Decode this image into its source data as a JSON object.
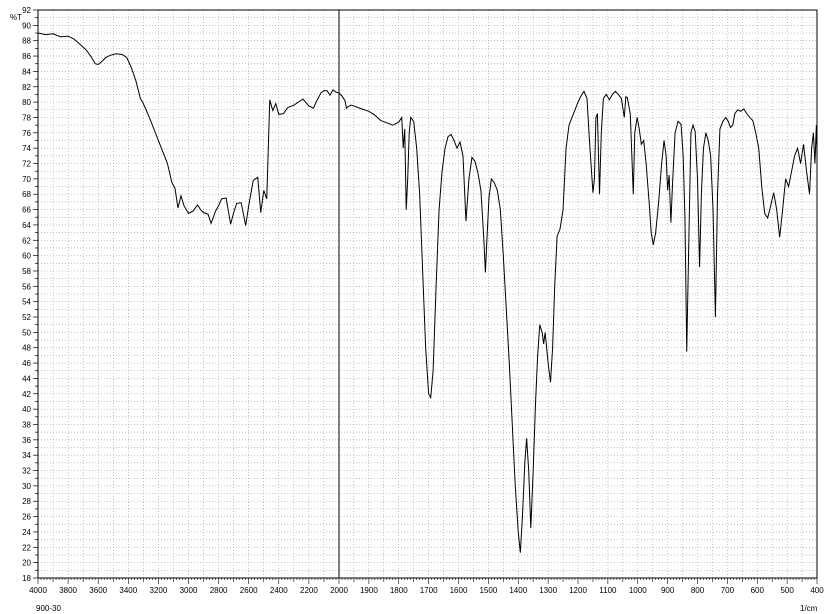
{
  "chart_data": {
    "type": "line",
    "y_unit_label": "%T",
    "x_unit_label": "1/cm",
    "sample_id": "900-30",
    "x_axis": {
      "reversed": true,
      "range": [
        4000,
        400
      ],
      "major_ticks": [
        4000,
        3800,
        3600,
        3400,
        3200,
        3000,
        2800,
        2600,
        2400,
        2200,
        2000,
        1900,
        1800,
        1700,
        1600,
        1500,
        1400,
        1300,
        1200,
        1100,
        1000,
        900,
        800,
        700,
        600,
        500,
        400
      ]
    },
    "y_axis": {
      "range": [
        18,
        92
      ],
      "major_ticks": [
        18,
        20,
        22,
        24,
        26,
        28,
        30,
        32,
        34,
        36,
        38,
        40,
        42,
        44,
        46,
        48,
        50,
        52,
        54,
        56,
        58,
        60,
        62,
        64,
        66,
        68,
        70,
        72,
        74,
        76,
        78,
        80,
        82,
        84,
        86,
        88,
        90,
        92
      ]
    },
    "grid": true,
    "scale_break_marker_at": 2000,
    "series": [
      {
        "points": [
          [
            4000,
            89
          ],
          [
            3950,
            88.8
          ],
          [
            3900,
            88.9
          ],
          [
            3850,
            88.5
          ],
          [
            3800,
            88.6
          ],
          [
            3760,
            88.2
          ],
          [
            3720,
            87.5
          ],
          [
            3680,
            86.8
          ],
          [
            3650,
            86
          ],
          [
            3620,
            85
          ],
          [
            3600,
            84.9
          ],
          [
            3575,
            85.3
          ],
          [
            3550,
            85.8
          ],
          [
            3520,
            86.1
          ],
          [
            3480,
            86.3
          ],
          [
            3440,
            86.2
          ],
          [
            3410,
            85.8
          ],
          [
            3380,
            84.5
          ],
          [
            3350,
            82.8
          ],
          [
            3320,
            80.5
          ],
          [
            3300,
            79.8
          ],
          [
            3260,
            78
          ],
          [
            3220,
            76
          ],
          [
            3180,
            74
          ],
          [
            3140,
            72
          ],
          [
            3110,
            69.5
          ],
          [
            3090,
            68.8
          ],
          [
            3070,
            66.2
          ],
          [
            3050,
            67.8
          ],
          [
            3030,
            66.5
          ],
          [
            3000,
            65.5
          ],
          [
            2970,
            65.8
          ],
          [
            2940,
            66.6
          ],
          [
            2920,
            66
          ],
          [
            2900,
            65.6
          ],
          [
            2870,
            65.4
          ],
          [
            2850,
            64.2
          ],
          [
            2820,
            65.8
          ],
          [
            2800,
            66.5
          ],
          [
            2780,
            67.4
          ],
          [
            2750,
            67.5
          ],
          [
            2720,
            64.1
          ],
          [
            2700,
            65.6
          ],
          [
            2680,
            66.8
          ],
          [
            2650,
            66.9
          ],
          [
            2620,
            63.9
          ],
          [
            2600,
            66.5
          ],
          [
            2570,
            69.8
          ],
          [
            2540,
            70.2
          ],
          [
            2520,
            65.6
          ],
          [
            2500,
            68.5
          ],
          [
            2480,
            67.4
          ],
          [
            2460,
            80.3
          ],
          [
            2440,
            78.9
          ],
          [
            2420,
            79.8
          ],
          [
            2400,
            78.4
          ],
          [
            2370,
            78.5
          ],
          [
            2340,
            79.3
          ],
          [
            2300,
            79.6
          ],
          [
            2270,
            80
          ],
          [
            2240,
            80.4
          ],
          [
            2200,
            79.5
          ],
          [
            2170,
            79.2
          ],
          [
            2150,
            80.1
          ],
          [
            2120,
            81.2
          ],
          [
            2100,
            81.5
          ],
          [
            2080,
            81.5
          ],
          [
            2060,
            80.9
          ],
          [
            2040,
            81.6
          ],
          [
            2020,
            81.3
          ],
          [
            2000,
            81.2
          ],
          [
            1990,
            80.8
          ],
          [
            1980,
            80.2
          ],
          [
            1975,
            79.2
          ],
          [
            1970,
            79.4
          ],
          [
            1960,
            79.6
          ],
          [
            1950,
            79.5
          ],
          [
            1930,
            79.2
          ],
          [
            1900,
            78.8
          ],
          [
            1880,
            78.3
          ],
          [
            1860,
            77.6
          ],
          [
            1840,
            77.3
          ],
          [
            1820,
            77
          ],
          [
            1800,
            77.4
          ],
          [
            1790,
            78
          ],
          [
            1785,
            74
          ],
          [
            1780,
            76.5
          ],
          [
            1775,
            66
          ],
          [
            1770,
            70
          ],
          [
            1765,
            76
          ],
          [
            1760,
            78
          ],
          [
            1750,
            77.5
          ],
          [
            1740,
            74
          ],
          [
            1730,
            68
          ],
          [
            1720,
            58
          ],
          [
            1710,
            48
          ],
          [
            1700,
            42
          ],
          [
            1693,
            41.5
          ],
          [
            1685,
            45
          ],
          [
            1675,
            56
          ],
          [
            1665,
            66
          ],
          [
            1655,
            71
          ],
          [
            1645,
            74
          ],
          [
            1635,
            75.5
          ],
          [
            1625,
            75.8
          ],
          [
            1615,
            75
          ],
          [
            1605,
            74
          ],
          [
            1595,
            74.8
          ],
          [
            1585,
            73
          ],
          [
            1575,
            64.5
          ],
          [
            1565,
            70
          ],
          [
            1555,
            72.8
          ],
          [
            1545,
            72.3
          ],
          [
            1535,
            70.8
          ],
          [
            1525,
            68.5
          ],
          [
            1515,
            62
          ],
          [
            1510,
            57.8
          ],
          [
            1505,
            62
          ],
          [
            1498,
            67.5
          ],
          [
            1490,
            70
          ],
          [
            1480,
            69.5
          ],
          [
            1470,
            68.5
          ],
          [
            1460,
            66
          ],
          [
            1450,
            60
          ],
          [
            1440,
            53
          ],
          [
            1430,
            46
          ],
          [
            1420,
            38
          ],
          [
            1410,
            30
          ],
          [
            1400,
            24
          ],
          [
            1393,
            21.3
          ],
          [
            1386,
            26
          ],
          [
            1378,
            33
          ],
          [
            1372,
            36.2
          ],
          [
            1365,
            32
          ],
          [
            1358,
            24.5
          ],
          [
            1350,
            32
          ],
          [
            1342,
            41
          ],
          [
            1335,
            47
          ],
          [
            1328,
            51
          ],
          [
            1320,
            50
          ],
          [
            1315,
            48.5
          ],
          [
            1310,
            50
          ],
          [
            1300,
            46
          ],
          [
            1292,
            43.5
          ],
          [
            1285,
            48
          ],
          [
            1278,
            56
          ],
          [
            1270,
            62.5
          ],
          [
            1260,
            63.5
          ],
          [
            1250,
            66
          ],
          [
            1240,
            74
          ],
          [
            1230,
            77
          ],
          [
            1220,
            78
          ],
          [
            1210,
            79
          ],
          [
            1200,
            80
          ],
          [
            1190,
            80.8
          ],
          [
            1180,
            81.4
          ],
          [
            1170,
            80.5
          ],
          [
            1160,
            74
          ],
          [
            1150,
            68.2
          ],
          [
            1145,
            70
          ],
          [
            1140,
            78
          ],
          [
            1135,
            78.5
          ],
          [
            1128,
            68
          ],
          [
            1122,
            76
          ],
          [
            1115,
            80.5
          ],
          [
            1105,
            81
          ],
          [
            1095,
            80.3
          ],
          [
            1085,
            81
          ],
          [
            1075,
            81.4
          ],
          [
            1065,
            81
          ],
          [
            1055,
            80.5
          ],
          [
            1045,
            78
          ],
          [
            1040,
            80.7
          ],
          [
            1035,
            80.6
          ],
          [
            1025,
            78.5
          ],
          [
            1015,
            68
          ],
          [
            1010,
            76
          ],
          [
            1002,
            78
          ],
          [
            995,
            76.5
          ],
          [
            988,
            74.5
          ],
          [
            980,
            75
          ],
          [
            972,
            72
          ],
          [
            962,
            67
          ],
          [
            955,
            63
          ],
          [
            948,
            61.4
          ],
          [
            940,
            63
          ],
          [
            930,
            67
          ],
          [
            920,
            72
          ],
          [
            912,
            75
          ],
          [
            905,
            73
          ],
          [
            900,
            68.5
          ],
          [
            895,
            70.5
          ],
          [
            889,
            64.3
          ],
          [
            884,
            69
          ],
          [
            875,
            76
          ],
          [
            865,
            77.5
          ],
          [
            855,
            77.1
          ],
          [
            848,
            73
          ],
          [
            842,
            65
          ],
          [
            836,
            47.5
          ],
          [
            830,
            60
          ],
          [
            822,
            76
          ],
          [
            815,
            77
          ],
          [
            808,
            76.2
          ],
          [
            800,
            70
          ],
          [
            793,
            58.5
          ],
          [
            787,
            68
          ],
          [
            780,
            74
          ],
          [
            772,
            76
          ],
          [
            764,
            75
          ],
          [
            756,
            73
          ],
          [
            748,
            66
          ],
          [
            740,
            52
          ],
          [
            733,
            68
          ],
          [
            725,
            76.5
          ],
          [
            715,
            77.5
          ],
          [
            705,
            78
          ],
          [
            697,
            77.5
          ],
          [
            690,
            76.7
          ],
          [
            682,
            77
          ],
          [
            675,
            78.5
          ],
          [
            665,
            79
          ],
          [
            655,
            78.8
          ],
          [
            645,
            79.1
          ],
          [
            635,
            78.5
          ],
          [
            625,
            78
          ],
          [
            615,
            77.6
          ],
          [
            605,
            76
          ],
          [
            595,
            74
          ],
          [
            585,
            69
          ],
          [
            575,
            65.5
          ],
          [
            565,
            64.9
          ],
          [
            555,
            66.5
          ],
          [
            545,
            68.2
          ],
          [
            535,
            66
          ],
          [
            525,
            62.4
          ],
          [
            515,
            66
          ],
          [
            505,
            70
          ],
          [
            495,
            69
          ],
          [
            485,
            71
          ],
          [
            475,
            73
          ],
          [
            465,
            74
          ],
          [
            455,
            72
          ],
          [
            445,
            74.5
          ],
          [
            435,
            71
          ],
          [
            425,
            68
          ],
          [
            418,
            74
          ],
          [
            412,
            76
          ],
          [
            407,
            72
          ],
          [
            402,
            77
          ],
          [
            400,
            73
          ]
        ]
      }
    ]
  }
}
